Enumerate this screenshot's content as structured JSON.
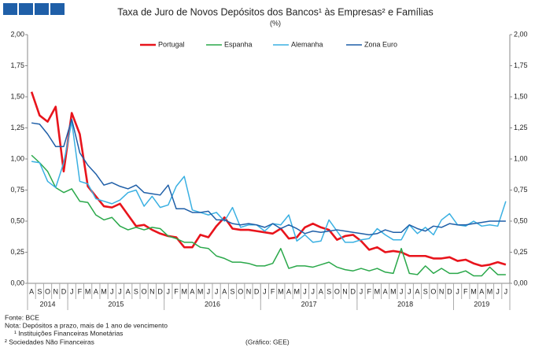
{
  "chart_data": {
    "type": "line",
    "title": "Taxa de Juro de Novos Depósitos dos Bancos¹ às Empresas² e Famílias",
    "subtitle": "(%)",
    "categories": [
      "A",
      "S",
      "O",
      "N",
      "D",
      "J",
      "F",
      "M",
      "A",
      "M",
      "J",
      "J",
      "A",
      "S",
      "O",
      "N",
      "D",
      "J",
      "F",
      "M",
      "A",
      "M",
      "J",
      "J",
      "A",
      "S",
      "O",
      "N",
      "D",
      "J",
      "F",
      "M",
      "A",
      "M",
      "J",
      "J",
      "A",
      "S",
      "O",
      "N",
      "D",
      "J",
      "F",
      "M",
      "A",
      "M",
      "J",
      "J",
      "A",
      "S",
      "O",
      "N",
      "D",
      "J",
      "F",
      "M",
      "A",
      "M",
      "J",
      "J"
    ],
    "years": [
      "2014",
      "2015",
      "2016",
      "2017",
      "2018",
      "2019"
    ],
    "series": [
      {
        "name": "Portugal",
        "color": "#e8141c",
        "width": 2.6,
        "values": [
          1.54,
          1.35,
          1.3,
          1.42,
          0.9,
          1.37,
          1.2,
          0.78,
          0.7,
          0.62,
          0.61,
          0.64,
          0.55,
          0.46,
          0.47,
          0.43,
          0.4,
          0.38,
          0.37,
          0.29,
          0.29,
          0.39,
          0.37,
          0.46,
          0.53,
          0.44,
          0.43,
          0.43,
          0.42,
          0.41,
          0.4,
          0.44,
          0.36,
          0.37,
          0.45,
          0.48,
          0.45,
          0.43,
          0.35,
          0.38,
          0.39,
          0.34,
          0.27,
          0.29,
          0.25,
          0.26,
          0.25,
          0.22,
          0.22,
          0.22,
          0.2,
          0.2,
          0.21,
          0.18,
          0.19,
          0.16,
          0.14,
          0.15,
          0.17,
          0.15
        ]
      },
      {
        "name": "Espanha",
        "color": "#2aa84a",
        "width": 1.5,
        "values": [
          1.03,
          0.97,
          0.9,
          0.77,
          0.73,
          0.76,
          0.66,
          0.65,
          0.55,
          0.51,
          0.53,
          0.46,
          0.43,
          0.45,
          0.43,
          0.45,
          0.44,
          0.38,
          0.36,
          0.33,
          0.33,
          0.29,
          0.28,
          0.22,
          0.2,
          0.17,
          0.17,
          0.16,
          0.14,
          0.14,
          0.16,
          0.28,
          0.12,
          0.14,
          0.14,
          0.13,
          0.15,
          0.17,
          0.13,
          0.11,
          0.1,
          0.12,
          0.1,
          0.12,
          0.09,
          0.08,
          0.28,
          0.08,
          0.07,
          0.14,
          0.08,
          0.12,
          0.08,
          0.08,
          0.1,
          0.06,
          0.06,
          0.13,
          0.07,
          0.07
        ]
      },
      {
        "name": "Alemanha",
        "color": "#3ab0e2",
        "width": 1.5,
        "values": [
          0.98,
          0.97,
          0.82,
          0.77,
          0.97,
          1.3,
          0.82,
          0.8,
          0.68,
          0.66,
          0.64,
          0.67,
          0.73,
          0.75,
          0.62,
          0.7,
          0.61,
          0.63,
          0.78,
          0.86,
          0.59,
          0.57,
          0.55,
          0.57,
          0.5,
          0.61,
          0.45,
          0.47,
          0.47,
          0.42,
          0.48,
          0.47,
          0.55,
          0.34,
          0.39,
          0.33,
          0.34,
          0.51,
          0.42,
          0.33,
          0.33,
          0.35,
          0.36,
          0.44,
          0.39,
          0.35,
          0.35,
          0.47,
          0.4,
          0.45,
          0.39,
          0.51,
          0.56,
          0.47,
          0.46,
          0.5,
          0.46,
          0.47,
          0.46,
          0.66
        ]
      },
      {
        "name": "Zona Euro",
        "color": "#1f5fa8",
        "width": 1.5,
        "values": [
          1.29,
          1.28,
          1.2,
          1.1,
          1.1,
          1.32,
          1.05,
          0.95,
          0.88,
          0.79,
          0.81,
          0.78,
          0.76,
          0.79,
          0.73,
          0.72,
          0.71,
          0.79,
          0.6,
          0.6,
          0.57,
          0.57,
          0.58,
          0.51,
          0.51,
          0.48,
          0.47,
          0.48,
          0.47,
          0.45,
          0.48,
          0.44,
          0.47,
          0.44,
          0.4,
          0.42,
          0.41,
          0.42,
          0.43,
          0.42,
          0.41,
          0.4,
          0.39,
          0.4,
          0.43,
          0.41,
          0.41,
          0.47,
          0.44,
          0.42,
          0.46,
          0.45,
          0.48,
          0.47,
          0.47,
          0.48,
          0.49,
          0.5,
          0.5,
          0.5
        ]
      }
    ],
    "ylim": [
      0,
      2
    ],
    "yticks": [
      {
        "value": 0,
        "label": "0,00"
      },
      {
        "value": 0.25,
        "label": "0,25"
      },
      {
        "value": 0.5,
        "label": "0,50"
      },
      {
        "value": 0.75,
        "label": "0,75"
      },
      {
        "value": 1,
        "label": "1,00"
      },
      {
        "value": 1.25,
        "label": "1,25"
      },
      {
        "value": 1.5,
        "label": "1,50"
      },
      {
        "value": 1.75,
        "label": "1,75"
      },
      {
        "value": 2,
        "label": "2,00"
      }
    ],
    "y2lim": [
      0,
      2
    ],
    "y2ticks": [
      {
        "value": 0,
        "label": "0,00"
      },
      {
        "value": 0.25,
        "label": "0,25"
      },
      {
        "value": 0.5,
        "label": "0,50"
      },
      {
        "value": 0.75,
        "label": "0,75"
      },
      {
        "value": 1,
        "label": "1,00"
      },
      {
        "value": 1.25,
        "label": "1,25"
      },
      {
        "value": 1.5,
        "label": "1,50"
      },
      {
        "value": 1.75,
        "label": "1,75"
      },
      {
        "value": 2,
        "label": "2,00"
      }
    ],
    "grid": false,
    "legend": "top",
    "notes": [
      "Fonte: BCE",
      "Nota: Depósitos a prazo, mais de 1 ano de vencimento",
      "¹ Instituições Financeiras Monetárias",
      "² Sociedades Não Financeiras"
    ],
    "credit": "(Gráfico: GEE)"
  }
}
